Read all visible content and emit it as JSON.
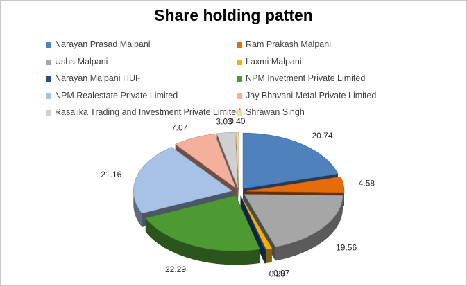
{
  "chart_data": {
    "type": "pie",
    "title": "Share holding patten",
    "legend_position": "top",
    "style": "3d-exploded",
    "slices": [
      {
        "name": "Narayan Prasad Malpani",
        "value": 20.74,
        "label": "20.74",
        "color": "#4f81bd"
      },
      {
        "name": "Ram Prakash Malpani",
        "value": 4.58,
        "label": "4.58",
        "color": "#e46c0a"
      },
      {
        "name": "Usha Malpani",
        "value": 19.56,
        "label": "19.56",
        "color": "#a6a6a6"
      },
      {
        "name": "Laxmi Malpani",
        "value": 0.97,
        "label": "0.97",
        "color": "#f2b300"
      },
      {
        "name": "Narayan Malpani HUF",
        "value": 0.2,
        "label": "0.20",
        "color": "#254e8f"
      },
      {
        "name": "NPM Invetment Private Limited",
        "value": 22.29,
        "label": "22.29",
        "color": "#4e9a32"
      },
      {
        "name": "NPM Realestate Private Limited",
        "value": 21.16,
        "label": "21.16",
        "color": "#a7c2e6"
      },
      {
        "name": "Jay Bhavani Metal Private Limited",
        "value": 7.07,
        "label": "7.07",
        "color": "#f4b09a"
      },
      {
        "name": "Rasalika Trading and Investment Private Limited",
        "value": 3.03,
        "label": "3.03",
        "color": "#d0d0d0"
      },
      {
        "name": "Shrawan Singh",
        "value": 0.4,
        "label": "0.40",
        "color": "#fcd8a0"
      }
    ]
  }
}
